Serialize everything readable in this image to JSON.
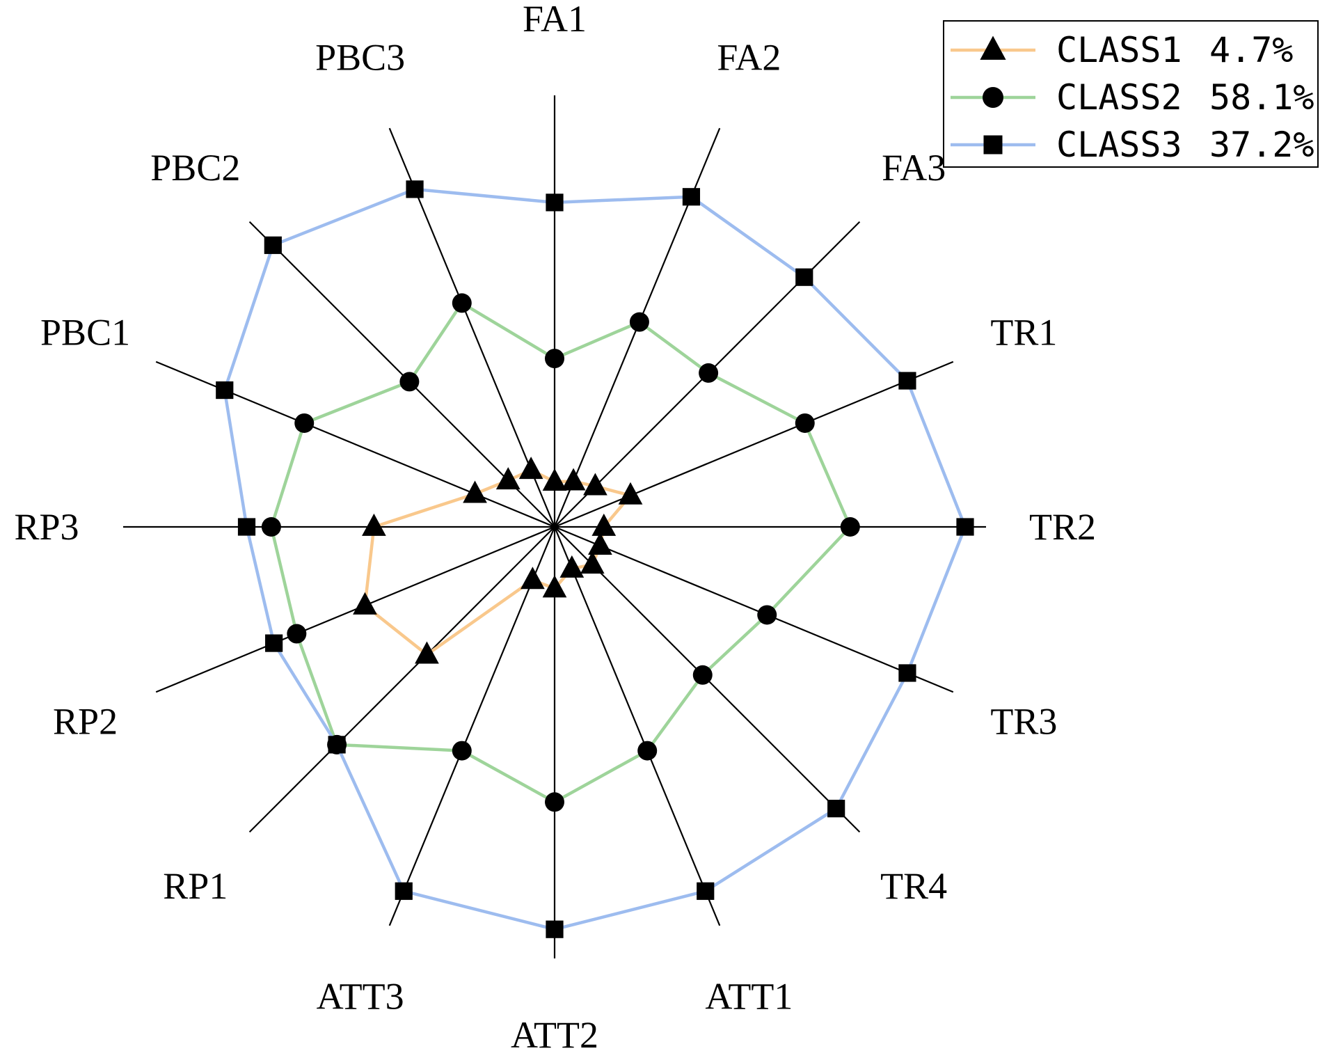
{
  "chart_data": {
    "type": "radar",
    "title": "",
    "axes": [
      "FA1",
      "FA2",
      "FA3",
      "TR1",
      "TR2",
      "TR3",
      "TR4",
      "ATT1",
      "ATT2",
      "ATT3",
      "RP1",
      "RP2",
      "RP3",
      "PBC1",
      "PBC2",
      "PBC3"
    ],
    "radial_range": [
      0,
      1
    ],
    "grid": false,
    "legend_position": "top-right",
    "series": [
      {
        "name": "CLASS1",
        "share": "4.7%",
        "color": "#f9c88c",
        "marker": "triangle",
        "values": [
          0.11,
          0.12,
          0.14,
          0.2,
          0.12,
          0.12,
          0.13,
          0.11,
          0.15,
          0.14,
          0.44,
          0.5,
          0.44,
          0.21,
          0.16,
          0.15
        ]
      },
      {
        "name": "CLASS2",
        "share": "58.1%",
        "color": "#9ed49a",
        "marker": "circle",
        "values": [
          0.41,
          0.54,
          0.53,
          0.66,
          0.72,
          0.56,
          0.51,
          0.59,
          0.67,
          0.59,
          0.75,
          0.68,
          0.69,
          0.66,
          0.5,
          0.59
        ]
      },
      {
        "name": "CLASS3",
        "share": "37.2%",
        "color": "#9dbcef",
        "marker": "square",
        "values": [
          0.79,
          0.87,
          0.86,
          0.93,
          1.0,
          0.93,
          0.97,
          0.96,
          0.98,
          0.96,
          0.75,
          0.74,
          0.75,
          0.87,
          0.97,
          0.89
        ]
      }
    ]
  }
}
